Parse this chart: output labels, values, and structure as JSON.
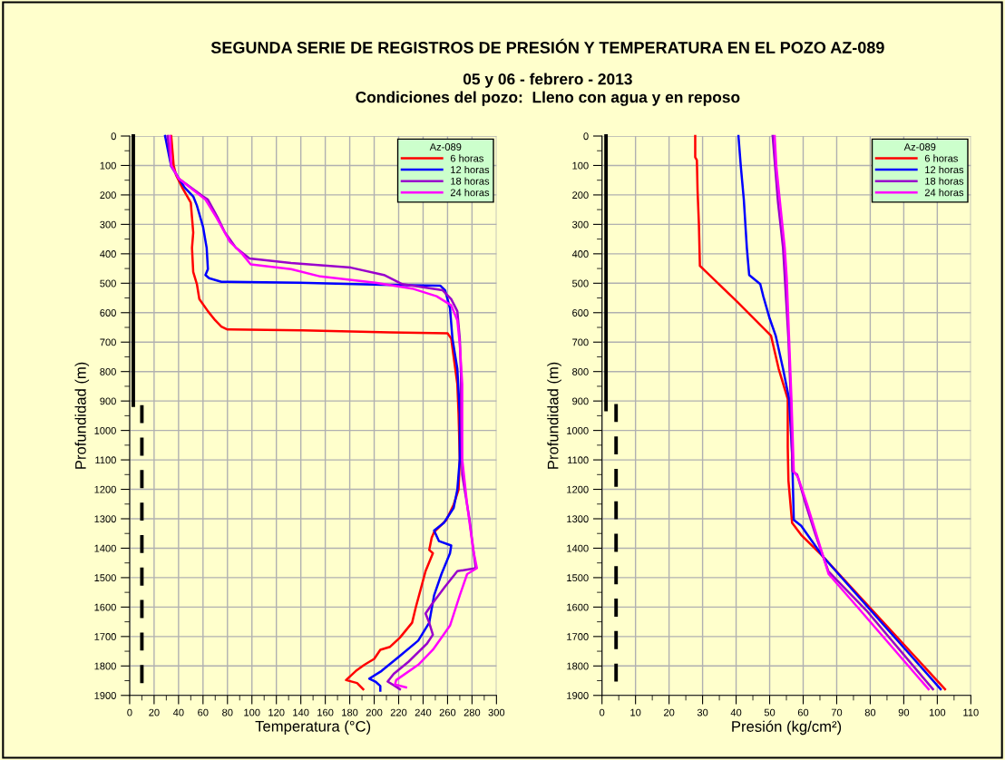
{
  "chart_data": [
    {
      "type": "line",
      "title": "SEGUNDA SERIE DE REGISTROS DE PRESIÓN Y TEMPERATURA EN EL POZO AZ-089",
      "subtitle": "05 y 06 - febrero - 2013\nCondiciones del pozo:  Lleno con agua y en reposo",
      "xlabel": "Temperatura (°C)",
      "ylabel": "Profundidad (m)",
      "legend_title": "Az-089",
      "legend": "top right",
      "grid": true,
      "xlim": [
        0,
        300
      ],
      "ylim": [
        1900,
        0
      ],
      "xticks": [
        0,
        {
          "value": 10,
          "label": null
        },
        20,
        {
          "value": 30,
          "label": null
        },
        40,
        {
          "value": 50,
          "label": null
        },
        60,
        {
          "value": 70,
          "label": null
        },
        80,
        {
          "value": 90,
          "label": null
        },
        100,
        {
          "value": 110,
          "label": null
        },
        120,
        {
          "value": 130,
          "label": null
        },
        140,
        {
          "value": 150,
          "label": null
        },
        160,
        {
          "value": 170,
          "label": null
        },
        180,
        {
          "value": 190,
          "label": null
        },
        200,
        {
          "value": 210,
          "label": null
        },
        220,
        {
          "value": 230,
          "label": null
        },
        240,
        {
          "value": 250,
          "label": null
        },
        260,
        {
          "value": 270,
          "label": null
        },
        280,
        {
          "value": 290,
          "label": null
        },
        300
      ],
      "yticks": [
        0,
        {
          "value": 50,
          "label": null
        },
        100,
        {
          "value": 150,
          "label": null
        },
        200,
        {
          "value": 250,
          "label": null
        },
        300,
        {
          "value": 350,
          "label": null
        },
        400,
        {
          "value": 450,
          "label": null
        },
        500,
        {
          "value": 550,
          "label": null
        },
        600,
        {
          "value": 650,
          "label": null
        },
        700,
        {
          "value": 750,
          "label": null
        },
        800,
        {
          "value": 850,
          "label": null
        },
        900,
        {
          "value": 950,
          "label": null
        },
        1000,
        {
          "value": 1050,
          "label": null
        },
        1100,
        {
          "value": 1150,
          "label": null
        },
        1200,
        {
          "value": 1250,
          "label": null
        },
        1300,
        {
          "value": 1350,
          "label": null
        },
        1400,
        {
          "value": 1450,
          "label": null
        },
        1500,
        {
          "value": 1550,
          "label": null
        },
        1600,
        {
          "value": 1650,
          "label": null
        },
        1700,
        {
          "value": 1750,
          "label": null
        },
        1800,
        {
          "value": 1850,
          "label": null
        },
        1900
      ],
      "series": [
        {
          "name": "6 horas",
          "color": "#ff0000",
          "x": [
            34,
            36,
            38,
            43,
            50,
            51,
            52,
            51,
            52,
            55,
            57,
            64,
            70,
            75,
            80,
            141,
            213,
            260,
            263,
            265,
            268,
            269,
            270,
            269,
            265,
            259,
            249,
            247,
            245,
            248,
            242,
            238,
            234,
            231,
            221,
            213,
            205,
            200,
            192,
            185,
            177,
            186,
            191
          ],
          "values": [
            0,
            100,
            133,
            175,
            226,
            277,
            328,
            380,
            462,
            503,
            554,
            595,
            626,
            647,
            657,
            660,
            667,
            670,
            688,
            750,
            842,
            944,
            1098,
            1201,
            1252,
            1304,
            1345,
            1365,
            1406,
            1417,
            1478,
            1540,
            1601,
            1653,
            1704,
            1735,
            1745,
            1776,
            1796,
            1817,
            1848,
            1858,
            1879
          ]
        },
        {
          "name": "12 horas",
          "color": "#0000ff",
          "x": [
            29,
            34,
            45,
            52,
            55,
            60,
            63,
            64,
            62,
            65,
            75,
            139,
            206,
            254,
            258,
            262,
            264,
            268,
            270,
            270,
            268,
            265,
            257,
            249,
            253,
            263,
            262,
            255,
            249,
            245,
            236,
            221,
            206,
            196,
            201,
            205,
            205
          ],
          "values": [
            0,
            103,
            175,
            205,
            236,
            308,
            380,
            452,
            472,
            483,
            495,
            498,
            505,
            508,
            524,
            585,
            688,
            791,
            944,
            1098,
            1201,
            1263,
            1314,
            1340,
            1376,
            1391,
            1417,
            1488,
            1560,
            1653,
            1714,
            1766,
            1817,
            1843,
            1853,
            1868,
            1884
          ]
        },
        {
          "name": "18 horas",
          "color": "#9900cc",
          "x": [
            31,
            34,
            40,
            60,
            64,
            72,
            78,
            87,
            98,
            132,
            181,
            208,
            223,
            256,
            263,
            268,
            270,
            271,
            271,
            272,
            278,
            283,
            268,
            258,
            247,
            242,
            245,
            248,
            243,
            228,
            216,
            211,
            217,
            221
          ],
          "values": [
            0,
            100,
            144,
            205,
            216,
            277,
            328,
            380,
            416,
            431,
            447,
            472,
            503,
            524,
            554,
            595,
            688,
            811,
            944,
            1150,
            1304,
            1468,
            1478,
            1530,
            1591,
            1622,
            1653,
            1694,
            1725,
            1786,
            1827,
            1853,
            1868,
            1879
          ]
        },
        {
          "name": "24 horas",
          "color": "#ff00ff",
          "x": [
            33,
            34,
            40,
            62,
            71,
            82,
            92,
            99,
            132,
            156,
            201,
            231,
            251,
            263,
            268,
            270,
            272,
            272,
            272,
            276,
            281,
            284,
            276,
            270,
            262,
            248,
            236,
            218,
            217,
            226
          ],
          "values": [
            0,
            100,
            144,
            216,
            277,
            359,
            400,
            436,
            452,
            477,
            498,
            518,
            544,
            575,
            626,
            708,
            842,
            944,
            1098,
            1252,
            1406,
            1468,
            1488,
            1560,
            1663,
            1745,
            1796,
            1848,
            1863,
            1873
          ]
        },
        {
          "color": "#000000",
          "line_style": "solid",
          "x": [
            3,
            3
          ],
          "values": [
            0,
            914
          ]
        },
        {
          "color": "#000000",
          "line_style": "dashed",
          "x": [
            10,
            10
          ],
          "values": [
            914,
            1858
          ]
        }
      ]
    },
    {
      "type": "line",
      "xlabel": "Presión (kg/cm²)",
      "ylabel": "Profundidad (m)",
      "legend_title": "Az-089",
      "legend": "top right",
      "grid": true,
      "xlim": [
        0,
        110
      ],
      "ylim": [
        1900,
        0
      ],
      "xticks": [
        0,
        {
          "value": 5,
          "label": null
        },
        10,
        {
          "value": 15,
          "label": null
        },
        20,
        {
          "value": 25,
          "label": null
        },
        30,
        {
          "value": 35,
          "label": null
        },
        40,
        {
          "value": 45,
          "label": null
        },
        50,
        {
          "value": 55,
          "label": null
        },
        60,
        {
          "value": 65,
          "label": null
        },
        70,
        {
          "value": 75,
          "label": null
        },
        80,
        {
          "value": 85,
          "label": null
        },
        90,
        {
          "value": 95,
          "label": null
        },
        100,
        {
          "value": 105,
          "label": null
        },
        110
      ],
      "yticks": [
        0,
        {
          "value": 50,
          "label": null
        },
        100,
        {
          "value": 150,
          "label": null
        },
        200,
        {
          "value": 250,
          "label": null
        },
        300,
        {
          "value": 350,
          "label": null
        },
        400,
        {
          "value": 450,
          "label": null
        },
        500,
        {
          "value": 550,
          "label": null
        },
        600,
        {
          "value": 650,
          "label": null
        },
        700,
        {
          "value": 750,
          "label": null
        },
        800,
        {
          "value": 850,
          "label": null
        },
        900,
        {
          "value": 950,
          "label": null
        },
        1000,
        {
          "value": 1050,
          "label": null
        },
        1100,
        {
          "value": 1150,
          "label": null
        },
        1200,
        {
          "value": 1250,
          "label": null
        },
        1300,
        {
          "value": 1350,
          "label": null
        },
        1400,
        {
          "value": 1450,
          "label": null
        },
        1500,
        {
          "value": 1550,
          "label": null
        },
        1600,
        {
          "value": 1650,
          "label": null
        },
        1700,
        {
          "value": 1750,
          "label": null
        },
        1800,
        {
          "value": 1850,
          "label": null
        },
        1900
      ],
      "series": [
        {
          "name": "6 horas",
          "color": "#ff0000",
          "x": [
            27.8,
            27.8,
            28.3,
            28.5,
            28.9,
            29.2,
            40.5,
            47.7,
            50.4,
            52.7,
            55.4,
            55.4,
            55.6,
            56.7,
            59.4,
            65.8,
            102.3
          ],
          "values": [
            0,
            72,
            82,
            185,
            298,
            441,
            565,
            647,
            678,
            791,
            893,
            1057,
            1170,
            1314,
            1355,
            1427,
            1879
          ]
        },
        {
          "name": "12 horas",
          "color": "#0000ff",
          "x": [
            40.7,
            41.4,
            42.3,
            43.2,
            43.9,
            47.2,
            48.1,
            49.9,
            51.8,
            54,
            55.8,
            56.7,
            57.2,
            59.4,
            65.8,
            101
          ],
          "values": [
            0,
            103,
            216,
            380,
            472,
            503,
            544,
            616,
            678,
            791,
            893,
            1078,
            1304,
            1324,
            1427,
            1879
          ]
        },
        {
          "name": "18 horas",
          "color": "#9900cc",
          "x": [
            50.9,
            52.5,
            54,
            55.6,
            56.3,
            56.8,
            58.2,
            60.8,
            63.7,
            67.5,
            78.9,
            98.7
          ],
          "values": [
            0,
            226,
            380,
            688,
            893,
            1139,
            1150,
            1252,
            1355,
            1478,
            1612,
            1879
          ]
        },
        {
          "name": "24 horas",
          "color": "#ff00ff",
          "x": [
            51.5,
            52,
            53.1,
            54.5,
            55.1,
            55.8,
            56.5,
            57.2,
            58.5,
            61.2,
            64,
            67.6,
            77.1,
            97.4
          ],
          "values": [
            0,
            103,
            226,
            380,
            483,
            688,
            893,
            1139,
            1160,
            1252,
            1355,
            1488,
            1612,
            1879
          ]
        },
        {
          "color": "#000000",
          "line_style": "solid",
          "x": [
            1.2,
            1.2
          ],
          "values": [
            0,
            929
          ]
        },
        {
          "color": "#000000",
          "line_style": "dashed",
          "x": [
            4.2,
            4.2
          ],
          "values": [
            910,
            1853
          ]
        }
      ]
    }
  ]
}
